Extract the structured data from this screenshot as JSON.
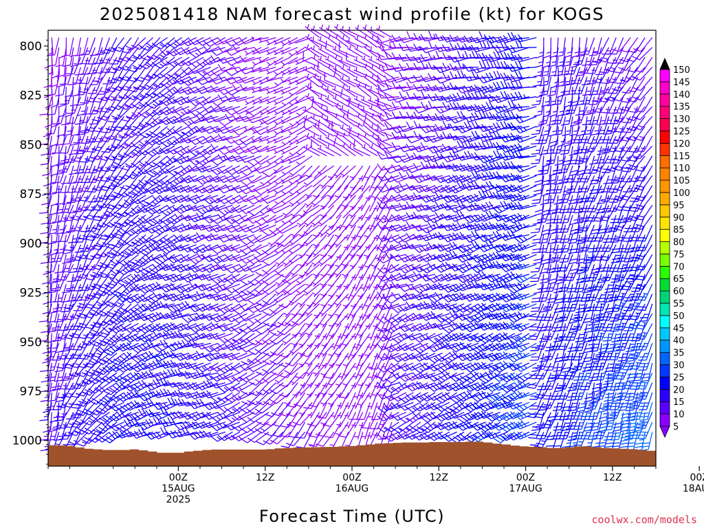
{
  "chart_data": {
    "type": "wind-barb-time-height",
    "title": "2025081418 NAM forecast wind profile (kt) for KOGS",
    "xlabel": "Forecast Time (UTC)",
    "ylabel": "",
    "y_axis": {
      "ticks": [
        "800",
        "825",
        "850",
        "875",
        "900",
        "925",
        "950",
        "975",
        "1000"
      ],
      "tick_values": [
        800,
        825,
        850,
        875,
        900,
        925,
        950,
        975,
        1000
      ],
      "range_hPa": [
        792,
        1013
      ],
      "inverted": true
    },
    "x_axis": {
      "range_hours_from_init": [
        -12,
        72
      ],
      "ticks": [
        {
          "hour": 6,
          "line1": "00Z",
          "line2": "15AUG",
          "line3": "2025"
        },
        {
          "hour": 18,
          "line1": "12Z",
          "line2": "",
          "line3": ""
        },
        {
          "hour": 30,
          "line1": "00Z",
          "line2": "16AUG",
          "line3": ""
        },
        {
          "hour": 42,
          "line1": "12Z",
          "line2": "",
          "line3": ""
        },
        {
          "hour": 54,
          "line1": "00Z",
          "line2": "17AUG",
          "line3": ""
        },
        {
          "hour": 66,
          "line1": "12Z",
          "line2": "",
          "line3": ""
        },
        {
          "hour": 78,
          "line1": "00Z",
          "line2": "18AUG",
          "line3": ""
        }
      ]
    },
    "colorbar": {
      "levels": [
        5,
        10,
        15,
        20,
        25,
        30,
        35,
        40,
        45,
        50,
        55,
        60,
        65,
        70,
        75,
        80,
        85,
        90,
        95,
        100,
        105,
        110,
        115,
        120,
        125,
        130,
        135,
        140,
        145,
        150
      ],
      "colors": [
        "#8a00ff",
        "#5a00ff",
        "#2a00ff",
        "#0000ff",
        "#0038ff",
        "#0064ff",
        "#0096ff",
        "#00c8ff",
        "#00ffff",
        "#00e6b4",
        "#00d278",
        "#00dc32",
        "#28ff00",
        "#78ff00",
        "#b4ff00",
        "#ffff00",
        "#ffe600",
        "#ffc800",
        "#ffaa00",
        "#ff9600",
        "#ff8200",
        "#ff6e00",
        "#ff3200",
        "#ff0000",
        "#ff0050",
        "#ff0078",
        "#ff00a0",
        "#ff00c8",
        "#ff00ff",
        "#000000"
      ],
      "under_color": "#8a00ff",
      "over_color": "#000000"
    },
    "surface_pressure_hPa": [
      1002.5,
      1002.5,
      1002.8,
      1003.5,
      1004.2,
      1004.5,
      1004.8,
      1004.8,
      1004.8,
      1004.5,
      1005,
      1005.6,
      1006.2,
      1006.2,
      1006.2,
      1005.6,
      1005.2,
      1004.8,
      1004.6,
      1004.6,
      1004.6,
      1004.6,
      1004.6,
      1004.6,
      1004.4,
      1004.0,
      1003.8,
      1003.6,
      1003.5,
      1003.4,
      1003.3,
      1003.2,
      1003.0,
      1002.8,
      1002.4,
      1002.0,
      1001.6,
      1001.4,
      1001.2,
      1001.0,
      1001.0,
      1001.0,
      1000.8,
      1000.8,
      1000.8,
      1000.8,
      1000.6,
      1000.6,
      1001.0,
      1001.6,
      1002.0,
      1002.6,
      1003.0,
      1003.2,
      1003.4,
      1003.8,
      1003.8,
      1003.4,
      1003.0,
      1003.0,
      1003.4,
      1003.8,
      1004.0,
      1004.2,
      1004.4,
      1004.8,
      1005.2
    ],
    "surface_color": "#a0522d",
    "barbs_note": "Wind barbs every forecast hour at 5 hPa intervals; directions mostly SW-W, speeds 5-35 kt, increasing near the end of the period"
  },
  "credit": "coolwx.com/models"
}
